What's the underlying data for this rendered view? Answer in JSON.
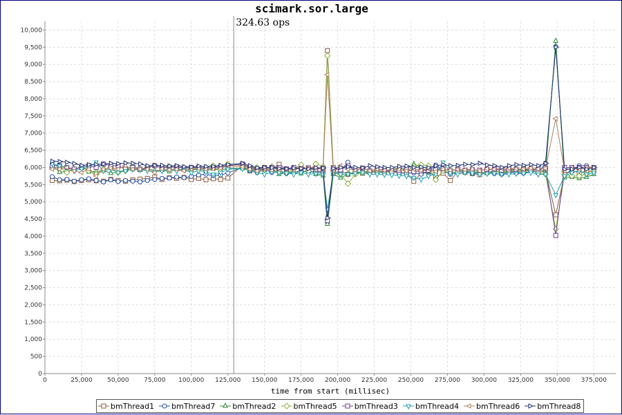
{
  "chart_data": {
    "type": "line",
    "title": "scimark.sor.large",
    "xlabel": "time from start (millisec)",
    "ylabel": "",
    "xlim": [
      0,
      390000
    ],
    "ylim": [
      0,
      10250
    ],
    "x_ticks": [
      0,
      25000,
      50000,
      75000,
      100000,
      125000,
      150000,
      175000,
      200000,
      225000,
      250000,
      275000,
      300000,
      325000,
      350000,
      375000
    ],
    "x_tick_labels": [
      "0",
      "25,000",
      "50,000",
      "75,000",
      "100,000",
      "125,000",
      "150,000",
      "175,000",
      "200,000",
      "225,000",
      "250,000",
      "275,000",
      "300,000",
      "325,000",
      "350,000",
      "375,000"
    ],
    "y_ticks": [
      0,
      500,
      1000,
      1500,
      2000,
      2500,
      3000,
      3500,
      4000,
      4500,
      5000,
      5500,
      6000,
      6500,
      7000,
      7500,
      8000,
      8500,
      9000,
      9500,
      10000
    ],
    "y_tick_labels": [
      "0",
      "500",
      "1,000",
      "1,500",
      "2,000",
      "2,500",
      "3,000",
      "3,500",
      "4,000",
      "4,500",
      "5,000",
      "5,500",
      "6,000",
      "6,500",
      "7,000",
      "7,500",
      "8,000",
      "8,500",
      "9,000",
      "9,500",
      "10,000"
    ],
    "grid": true,
    "legend_position": "bottom",
    "annotation": {
      "x": 129000,
      "text": "324.63 ops"
    },
    "x": [
      5000,
      10000,
      15000,
      20000,
      25000,
      30000,
      35000,
      40000,
      45000,
      50000,
      55000,
      60000,
      65000,
      70000,
      75000,
      80000,
      85000,
      90000,
      95000,
      100000,
      105000,
      110000,
      115000,
      120000,
      125000,
      135000,
      140000,
      145000,
      150000,
      155000,
      160000,
      165000,
      170000,
      175000,
      180000,
      185000,
      190000,
      193000,
      197000,
      202000,
      207000,
      212000,
      217000,
      222000,
      227000,
      232000,
      237000,
      242000,
      247000,
      252000,
      257000,
      262000,
      267000,
      272000,
      277000,
      282000,
      287000,
      292000,
      297000,
      302000,
      307000,
      312000,
      317000,
      322000,
      327000,
      332000,
      337000,
      342000,
      349000,
      355000,
      360000,
      365000,
      370000,
      375000
    ],
    "series": [
      {
        "name": "bmThread1",
        "color": "#8b5a3c",
        "marker": "square",
        "values": [
          5620,
          5610,
          5630,
          5590,
          5620,
          5640,
          5610,
          5600,
          5650,
          5620,
          5600,
          5640,
          5660,
          5680,
          5720,
          5650,
          5700,
          5680,
          5710,
          5650,
          5680,
          5640,
          5670,
          5650,
          5690,
          6060,
          5900,
          5950,
          6000,
          5960,
          6090,
          5950,
          6000,
          5960,
          5980,
          5900,
          5870,
          9400,
          6000,
          5900,
          5800,
          5870,
          5830,
          5860,
          5880,
          5850,
          5900,
          5830,
          5850,
          5600,
          5830,
          5880,
          5720,
          5830,
          5620,
          5880,
          5860,
          5820,
          5790,
          5850,
          5900,
          5830,
          5880,
          5860,
          5900,
          5950,
          5850,
          5900,
          4620,
          5800,
          5900,
          5850,
          5890,
          5900
        ]
      },
      {
        "name": "bmThread7",
        "color": "#1f4ea6",
        "marker": "circle",
        "values": [
          5730,
          5640,
          5650,
          5600,
          5640,
          5670,
          5620,
          5580,
          5640,
          5590,
          5620,
          5600,
          5580,
          5620,
          5650,
          5680,
          5690,
          5720,
          5700,
          5740,
          5780,
          5800,
          5760,
          5780,
          5840,
          6000,
          5900,
          5850,
          5950,
          5850,
          5900,
          5820,
          5850,
          5900,
          5860,
          5880,
          5840,
          4400,
          5820,
          5900,
          6150,
          5850,
          5870,
          5850,
          5880,
          5840,
          5900,
          5850,
          5830,
          5840,
          5800,
          5870,
          6070,
          5900,
          5800,
          5860,
          5870,
          5830,
          5850,
          5860,
          5820,
          5800,
          5850,
          5860,
          5830,
          5900,
          5850,
          6120,
          9520,
          5800,
          5920,
          6050,
          6050,
          5960
        ]
      },
      {
        "name": "bmThread2",
        "color": "#2e8b3a",
        "marker": "triangle-up",
        "values": [
          6070,
          5860,
          5880,
          5950,
          6020,
          5870,
          5880,
          5910,
          5830,
          5870,
          5920,
          5950,
          5920,
          5960,
          5910,
          5920,
          5880,
          5950,
          5930,
          5920,
          5960,
          5900,
          5960,
          5920,
          5980,
          5970,
          5930,
          5970,
          5920,
          5960,
          5800,
          5850,
          5880,
          5820,
          5950,
          5800,
          5760,
          4350,
          5800,
          5700,
          5800,
          5870,
          5850,
          5910,
          5860,
          5880,
          5930,
          6000,
          5950,
          6100,
          6000,
          5880,
          5940,
          5960,
          5900,
          5950,
          5880,
          5880,
          5860,
          5830,
          5870,
          5910,
          5880,
          5920,
          5940,
          5900,
          5980,
          5850,
          9680,
          5700,
          5720,
          5680,
          5720,
          5800
        ]
      },
      {
        "name": "bmThread5",
        "color": "#8ab040",
        "marker": "diamond",
        "values": [
          6000,
          6000,
          5850,
          5960,
          6000,
          5900,
          5800,
          5950,
          6000,
          5850,
          5900,
          6050,
          5950,
          6000,
          6050,
          6000,
          6030,
          5980,
          6000,
          5950,
          6000,
          6000,
          6050,
          5950,
          6100,
          6050,
          6000,
          6000,
          5950,
          6030,
          5900,
          5850,
          5950,
          6080,
          5900,
          6100,
          6020,
          9250,
          5900,
          5800,
          5530,
          5800,
          5850,
          5870,
          5900,
          5880,
          5850,
          5950,
          5900,
          6030,
          6080,
          6050,
          5640,
          5900,
          5850,
          5870,
          5900,
          5880,
          5840,
          5850,
          5880,
          5850,
          5900,
          5950,
          5880,
          5920,
          5850,
          5800,
          4200,
          5800,
          5750,
          5750,
          5800,
          5950
        ]
      },
      {
        "name": "bmThread3",
        "color": "#6a3d8e",
        "marker": "square",
        "values": [
          6050,
          6050,
          6000,
          5950,
          6000,
          6050,
          6000,
          6100,
          6050,
          6050,
          5950,
          6000,
          5950,
          5990,
          6050,
          6000,
          6000,
          6020,
          5980,
          6000,
          6000,
          5980,
          6000,
          6020,
          6050,
          6100,
          6000,
          5950,
          5980,
          6000,
          6000,
          5960,
          6000,
          5970,
          5990,
          5950,
          5980,
          4450,
          5950,
          5930,
          6050,
          5900,
          5980,
          5900,
          5950,
          5930,
          5880,
          5920,
          5950,
          5880,
          5900,
          5920,
          5930,
          5960,
          5900,
          5950,
          5920,
          5930,
          5920,
          5940,
          5950,
          5920,
          5950,
          5940,
          5960,
          5920,
          5950,
          5980,
          4020,
          6000,
          6000,
          6000,
          6000,
          6000
        ]
      },
      {
        "name": "bmThread4",
        "color": "#20a0b0",
        "marker": "triangle-down",
        "values": [
          6100,
          6050,
          6000,
          5900,
          5960,
          6000,
          6150,
          5900,
          5950,
          5850,
          5900,
          5950,
          5930,
          5900,
          5870,
          5900,
          5950,
          5900,
          5930,
          5850,
          5900,
          5870,
          5800,
          5850,
          5950,
          5960,
          5920,
          5850,
          5800,
          5870,
          5850,
          5830,
          5800,
          5850,
          5800,
          5820,
          5800,
          4780,
          5850,
          5800,
          5800,
          5830,
          5850,
          5800,
          5800,
          5790,
          5780,
          5760,
          5750,
          5700,
          5650,
          5750,
          5800,
          6150,
          5840,
          5800,
          5850,
          5830,
          5800,
          5820,
          5830,
          5800,
          5800,
          5820,
          5830,
          5850,
          5800,
          5800,
          5200,
          5750,
          5850,
          5900,
          5800,
          5850
        ]
      },
      {
        "name": "bmThread6",
        "color": "#b08060",
        "marker": "triangle-left",
        "values": [
          5950,
          5950,
          6000,
          5900,
          5850,
          5950,
          5750,
          5950,
          5980,
          5950,
          6050,
          5950,
          5950,
          5950,
          5850,
          5960,
          5930,
          5950,
          5900,
          5950,
          5970,
          5950,
          5960,
          5980,
          6050,
          6020,
          5950,
          5900,
          5960,
          5920,
          5930,
          5950,
          5940,
          5980,
          5990,
          6000,
          5950,
          8700,
          5900,
          6050,
          5950,
          5930,
          5970,
          5900,
          5950,
          5920,
          5930,
          5950,
          5900,
          5950,
          5920,
          5960,
          5880,
          5950,
          5920,
          5940,
          5930,
          5950,
          5900,
          5960,
          5950,
          5970,
          5980,
          5960,
          5950,
          5980,
          5960,
          5970,
          7420,
          5900,
          5980,
          5950,
          6000,
          6000
        ]
      },
      {
        "name": "bmThread8",
        "color": "#203070",
        "marker": "triangle-right",
        "values": [
          6180,
          6170,
          6150,
          6110,
          6060,
          6080,
          6090,
          6100,
          6120,
          6110,
          6130,
          6120,
          6100,
          6050,
          6060,
          6060,
          6040,
          6050,
          6020,
          6010,
          6040,
          6030,
          6030,
          6060,
          6080,
          6120,
          6050,
          5990,
          6000,
          5990,
          5970,
          5960,
          5980,
          5970,
          5960,
          5990,
          5980,
          4530,
          5970,
          6000,
          6020,
          6000,
          5990,
          6050,
          6020,
          6000,
          6000,
          6030,
          6040,
          6000,
          6010,
          5990,
          6050,
          6080,
          6050,
          6060,
          6090,
          6080,
          6120,
          6070,
          6050,
          6000,
          6050,
          6080,
          6060,
          6080,
          6050,
          6120,
          9500,
          5950,
          5950,
          6000,
          5950,
          6000
        ]
      }
    ]
  }
}
